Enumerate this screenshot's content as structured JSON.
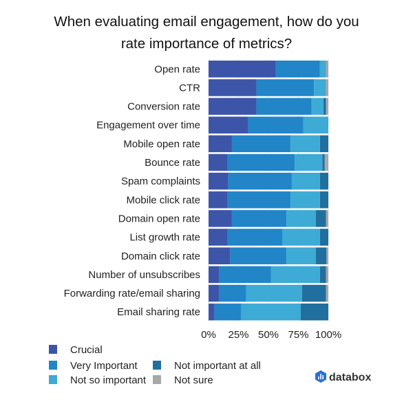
{
  "chart_data": {
    "type": "bar",
    "orientation": "horizontal",
    "stacked": true,
    "title_lines": [
      "When evaluating email engagement, how do you",
      "rate importance of metrics?"
    ],
    "categories": [
      "Open rate",
      "CTR",
      "Conversion rate",
      "Engagement over time",
      "Mobile open rate",
      "Bounce rate",
      "Spam complaints",
      "Mobile click rate",
      "Domain open rate",
      "List growth rate",
      "Domain click rate",
      "Number of unsubscribes",
      "Forwarding rate/email sharing",
      "Email sharing rate"
    ],
    "series": [
      {
        "name": "Crucial",
        "color": "#3d55a8",
        "values": [
          56,
          40,
          40,
          33,
          19.5,
          16,
          16.5,
          16,
          19.5,
          16,
          18,
          9,
          9,
          5
        ]
      },
      {
        "name": "Very Important",
        "color": "#2185c8",
        "values": [
          37,
          48,
          46,
          46,
          49,
          56,
          53,
          52.5,
          45.5,
          45.5,
          47,
          43,
          22.5,
          22
        ]
      },
      {
        "name": "Not so important",
        "color": "#3eaad6",
        "values": [
          5,
          10,
          10,
          21,
          24.5,
          23,
          23.5,
          24.5,
          24.5,
          31.5,
          24.5,
          41,
          46.5,
          50
        ]
      },
      {
        "name": "Not important at all",
        "color": "#216f9e",
        "values": [
          0,
          0,
          2,
          0,
          7,
          2,
          7,
          7,
          8.5,
          7,
          9,
          5,
          20,
          23
        ]
      },
      {
        "name": "Not sure",
        "color": "#a8a8a8",
        "values": [
          2,
          2,
          2,
          0,
          0,
          3,
          0,
          0,
          2,
          0,
          1.5,
          2,
          2,
          0
        ]
      }
    ],
    "xlim": [
      0,
      100
    ],
    "xticks": [
      "0%",
      "25%",
      "50%",
      "75%",
      "100%"
    ],
    "legend_position": "bottom-left",
    "grid": true
  },
  "branding": {
    "logo_text": "databox"
  }
}
